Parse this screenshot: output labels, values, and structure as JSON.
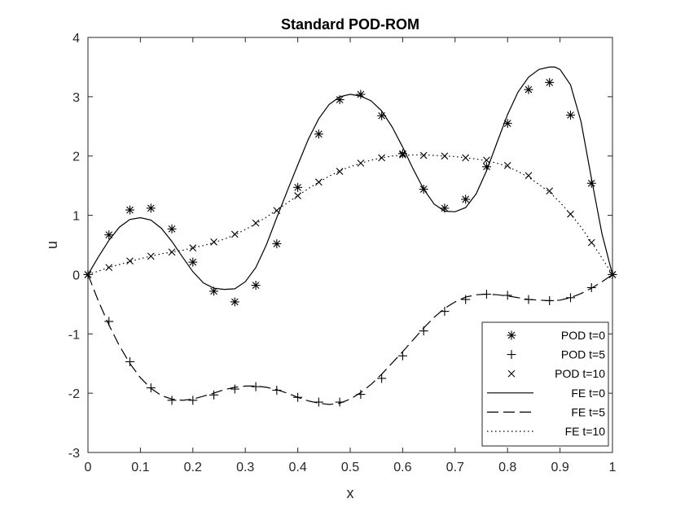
{
  "chart_data": {
    "type": "line",
    "title": "Standard POD-ROM",
    "xlabel": "x",
    "ylabel": "u",
    "xlim": [
      0,
      1
    ],
    "ylim": [
      -3,
      4
    ],
    "xticks": [
      0,
      0.1,
      0.2,
      0.3,
      0.4,
      0.5,
      0.6,
      0.7,
      0.8,
      0.9,
      1
    ],
    "xtick_labels": [
      "0",
      "0.1",
      "0.2",
      "0.3",
      "0.4",
      "0.5",
      "0.6",
      "0.7",
      "0.8",
      "0.9",
      "1"
    ],
    "yticks": [
      -3,
      -2,
      -1,
      0,
      1,
      2,
      3,
      4
    ],
    "ytick_labels": [
      "-3",
      "-2",
      "-1",
      "0",
      "1",
      "2",
      "3",
      "4"
    ],
    "grid": false,
    "legend_position": "bottom-right",
    "marker_series": [
      {
        "name": "POD t=0",
        "marker": "asterisk",
        "x": [
          0,
          0.04,
          0.08,
          0.12,
          0.16,
          0.2,
          0.24,
          0.28,
          0.32,
          0.36,
          0.4,
          0.44,
          0.48,
          0.52,
          0.56,
          0.6,
          0.64,
          0.68,
          0.72,
          0.76,
          0.8,
          0.84,
          0.88,
          0.92,
          0.96,
          1
        ],
        "y": [
          0,
          0.67,
          1.09,
          1.12,
          0.77,
          0.21,
          -0.28,
          -0.46,
          -0.18,
          0.52,
          1.47,
          2.37,
          2.95,
          3.04,
          2.68,
          2.04,
          1.44,
          1.12,
          1.27,
          1.82,
          2.55,
          3.12,
          3.24,
          2.69,
          1.54,
          0
        ]
      },
      {
        "name": "POD t=5",
        "marker": "plus",
        "x": [
          0,
          0.04,
          0.08,
          0.12,
          0.16,
          0.2,
          0.24,
          0.28,
          0.32,
          0.36,
          0.4,
          0.44,
          0.48,
          0.52,
          0.56,
          0.6,
          0.64,
          0.68,
          0.72,
          0.76,
          0.8,
          0.84,
          0.88,
          0.92,
          0.96,
          1
        ],
        "y": [
          0,
          -0.79,
          -1.47,
          -1.91,
          -2.12,
          -2.12,
          -2.03,
          -1.93,
          -1.89,
          -1.95,
          -2.07,
          -2.15,
          -2.15,
          -2.02,
          -1.75,
          -1.37,
          -0.95,
          -0.62,
          -0.42,
          -0.33,
          -0.35,
          -0.42,
          -0.44,
          -0.39,
          -0.22,
          0
        ]
      },
      {
        "name": "POD t=10",
        "marker": "cross",
        "x": [
          0,
          0.04,
          0.08,
          0.12,
          0.16,
          0.2,
          0.24,
          0.28,
          0.32,
          0.36,
          0.4,
          0.44,
          0.48,
          0.52,
          0.56,
          0.6,
          0.64,
          0.68,
          0.72,
          0.76,
          0.8,
          0.84,
          0.88,
          0.92,
          0.96,
          1
        ],
        "y": [
          0,
          0.12,
          0.23,
          0.31,
          0.38,
          0.45,
          0.55,
          0.68,
          0.87,
          1.08,
          1.33,
          1.56,
          1.74,
          1.88,
          1.97,
          2.02,
          2.01,
          2.0,
          1.97,
          1.93,
          1.84,
          1.67,
          1.41,
          1.02,
          0.54,
          0
        ]
      }
    ],
    "line_series": [
      {
        "name": "FE t=0",
        "dash": "solid",
        "x": [
          0,
          0.02,
          0.04,
          0.06,
          0.08,
          0.1,
          0.12,
          0.14,
          0.16,
          0.18,
          0.2,
          0.22,
          0.24,
          0.26,
          0.28,
          0.3,
          0.32,
          0.34,
          0.36,
          0.38,
          0.4,
          0.42,
          0.44,
          0.46,
          0.48,
          0.5,
          0.52,
          0.54,
          0.56,
          0.58,
          0.6,
          0.62,
          0.64,
          0.66,
          0.68,
          0.7,
          0.72,
          0.74,
          0.76,
          0.78,
          0.8,
          0.82,
          0.84,
          0.86,
          0.88,
          0.89,
          0.9,
          0.92,
          0.94,
          0.96,
          0.98,
          1
        ],
        "y": [
          0,
          0.3,
          0.58,
          0.8,
          0.93,
          0.96,
          0.92,
          0.78,
          0.56,
          0.3,
          0.05,
          -0.14,
          -0.23,
          -0.25,
          -0.24,
          -0.12,
          0.12,
          0.5,
          0.96,
          1.41,
          1.85,
          2.28,
          2.63,
          2.87,
          3.0,
          3.04,
          3.01,
          2.93,
          2.76,
          2.49,
          2.15,
          1.78,
          1.44,
          1.19,
          1.07,
          1.06,
          1.13,
          1.36,
          1.75,
          2.23,
          2.7,
          3.08,
          3.33,
          3.46,
          3.5,
          3.5,
          3.46,
          3.2,
          2.58,
          1.62,
          0.69,
          0
        ]
      },
      {
        "name": "FE t=5",
        "dash": "dashed",
        "x": [
          0,
          0.02,
          0.04,
          0.06,
          0.08,
          0.1,
          0.12,
          0.14,
          0.16,
          0.18,
          0.2,
          0.22,
          0.24,
          0.26,
          0.28,
          0.3,
          0.32,
          0.34,
          0.36,
          0.38,
          0.4,
          0.42,
          0.44,
          0.46,
          0.48,
          0.5,
          0.52,
          0.54,
          0.56,
          0.58,
          0.6,
          0.62,
          0.64,
          0.66,
          0.68,
          0.7,
          0.72,
          0.74,
          0.76,
          0.78,
          0.8,
          0.82,
          0.84,
          0.86,
          0.88,
          0.9,
          0.92,
          0.94,
          0.96,
          0.98,
          1
        ],
        "y": [
          0,
          -0.45,
          -0.85,
          -1.2,
          -1.5,
          -1.74,
          -1.92,
          -2.04,
          -2.1,
          -2.12,
          -2.1,
          -2.05,
          -2.0,
          -1.94,
          -1.9,
          -1.88,
          -1.88,
          -1.9,
          -1.94,
          -2.0,
          -2.07,
          -2.13,
          -2.17,
          -2.19,
          -2.17,
          -2.1,
          -1.99,
          -1.85,
          -1.68,
          -1.49,
          -1.3,
          -1.1,
          -0.9,
          -0.72,
          -0.57,
          -0.46,
          -0.38,
          -0.34,
          -0.33,
          -0.34,
          -0.36,
          -0.39,
          -0.42,
          -0.43,
          -0.44,
          -0.43,
          -0.39,
          -0.32,
          -0.23,
          -0.12,
          0
        ]
      },
      {
        "name": "FE t=10",
        "dash": "dotted",
        "x": [
          0,
          0.02,
          0.04,
          0.06,
          0.08,
          0.1,
          0.12,
          0.14,
          0.16,
          0.18,
          0.2,
          0.22,
          0.24,
          0.26,
          0.28,
          0.3,
          0.32,
          0.34,
          0.36,
          0.38,
          0.4,
          0.42,
          0.44,
          0.46,
          0.48,
          0.5,
          0.52,
          0.54,
          0.56,
          0.58,
          0.6,
          0.62,
          0.64,
          0.66,
          0.68,
          0.7,
          0.72,
          0.74,
          0.76,
          0.78,
          0.8,
          0.82,
          0.84,
          0.86,
          0.88,
          0.9,
          0.92,
          0.94,
          0.96,
          0.98,
          1
        ],
        "y": [
          0,
          0.06,
          0.12,
          0.17,
          0.22,
          0.27,
          0.31,
          0.35,
          0.38,
          0.41,
          0.45,
          0.49,
          0.54,
          0.6,
          0.67,
          0.76,
          0.86,
          0.97,
          1.09,
          1.21,
          1.33,
          1.45,
          1.56,
          1.66,
          1.75,
          1.82,
          1.88,
          1.93,
          1.97,
          2.0,
          2.01,
          2.02,
          2.02,
          2.01,
          2.0,
          1.99,
          1.97,
          1.95,
          1.92,
          1.88,
          1.82,
          1.74,
          1.64,
          1.52,
          1.39,
          1.22,
          1.02,
          0.8,
          0.55,
          0.28,
          0
        ]
      }
    ]
  }
}
